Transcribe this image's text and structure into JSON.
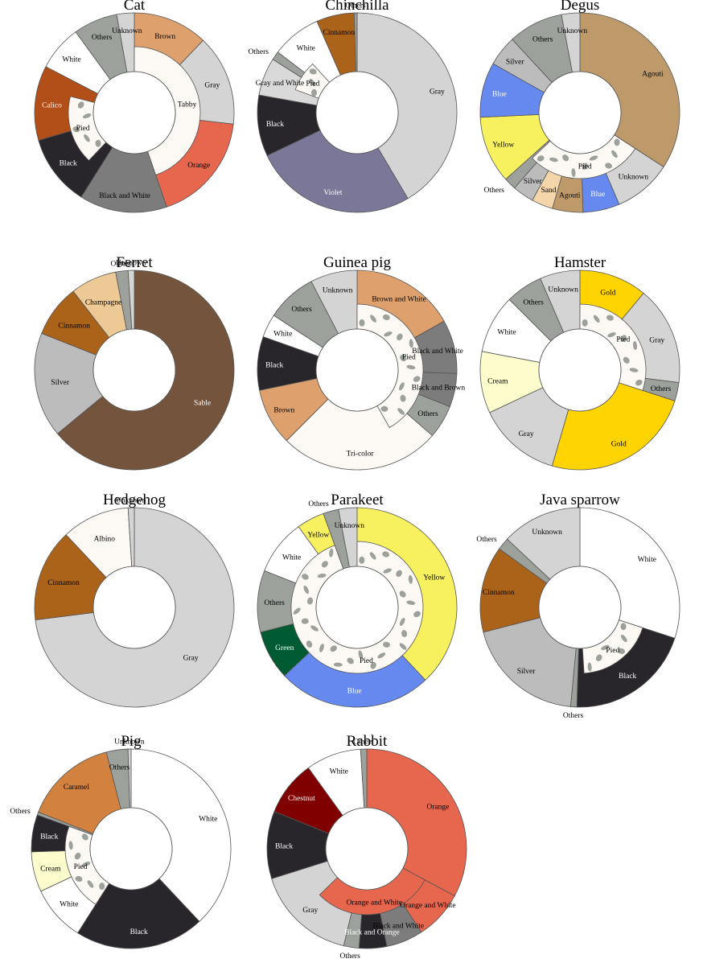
{
  "colors": {
    "Tabby": "#fcf8f4",
    "Brown": "#dea06c",
    "Gray": "#d4d4d4",
    "Orange": "#e6664e",
    "Black and White": "#7c7c7c",
    "Black": "#28262b",
    "Calico": "#b24e18",
    "White": "#ffffff",
    "Others": "#9ca19c",
    "Unknown": "#d4d4d4",
    "Cinnamon": "#ab6319",
    "Violet": "#7a7799",
    "Gray and White": "#d9d9d9",
    "Agouti": "#be9a6a",
    "Blue": "#6589ee",
    "Yellow": "#f8f15f",
    "Silver": "#bcbcbc",
    "Sand": "#f4d6aa",
    "Sable": "#74543d",
    "Champagne": "#ecc995",
    "Brown and White": "#dea06c",
    "Black and Brown": "#7c7c7c",
    "Tri-color": "#fcf8f4",
    "Gold": "#ffd400",
    "Cream": "#fdfccd",
    "Albino": "#fcf8f4",
    "Green": "#005a32",
    "Caramel": "#d2823e",
    "Chestnut": "#800000",
    "Orange and White": "#e6664e",
    "Black and Orange": "#28262b",
    "Pied": "#fcf8f4",
    "Pied spot": "#9ca19c"
  },
  "chart_data": [
    {
      "title": "Cat",
      "type": "pie",
      "outer": [
        {
          "label": "Brown",
          "value": 11.5
        },
        {
          "label": "Gray",
          "value": 14
        },
        {
          "label": "Orange",
          "value": 17
        },
        {
          "label": "Black and White",
          "value": 13.5
        },
        {
          "label": "Black",
          "value": 11
        },
        {
          "label": "Calico",
          "value": 11.5
        },
        {
          "label": "White",
          "value": 7
        },
        {
          "label": "Others",
          "value": 6.8
        },
        {
          "label": "Unknown",
          "value": 2.7
        }
      ],
      "inner": [
        {
          "label": "Tabby",
          "value": 42.5,
          "start": 0
        },
        {
          "label": "Pied",
          "value": 16,
          "start": 59
        }
      ]
    },
    {
      "title": "Chinchilla",
      "type": "pie",
      "outer": [
        {
          "label": "Gray",
          "value": 44
        },
        {
          "label": "Violet",
          "value": 28
        },
        {
          "label": "Black",
          "value": 10.5
        },
        {
          "label": "Gray and White",
          "value": 6.5
        },
        {
          "label": "Others",
          "value": 1.5
        },
        {
          "label": "White",
          "value": 8.5
        },
        {
          "label": "Cinnamon",
          "value": 6.5
        },
        {
          "label": "Others",
          "value": 0.5
        }
      ],
      "inner": [
        {
          "label": "Pied",
          "value": 8,
          "start": 85.5
        }
      ]
    },
    {
      "title": "Degus",
      "type": "pie",
      "outer": [
        {
          "label": "Agouti",
          "value": 34.5
        },
        {
          "label": "Unknown",
          "value": 9.5
        },
        {
          "label": "Blue",
          "value": 6
        },
        {
          "label": "Agouti",
          "value": 5
        },
        {
          "label": "Sand",
          "value": 3.5
        },
        {
          "label": "Silver",
          "value": 3.5
        },
        {
          "label": "Others",
          "value": 2
        },
        {
          "label": "Yellow",
          "value": 11
        },
        {
          "label": "Blue",
          "value": 9
        },
        {
          "label": "Silver",
          "value": 5
        },
        {
          "label": "Others",
          "value": 9
        },
        {
          "label": "Unknown",
          "value": 3
        }
      ],
      "inner": [
        {
          "label": "Pied",
          "value": 29,
          "start": 34.5
        }
      ]
    },
    {
      "title": "Ferret",
      "type": "pie",
      "outer": [
        {
          "label": "Sable",
          "value": 64
        },
        {
          "label": "Silver",
          "value": 17
        },
        {
          "label": "Cinnamon",
          "value": 8.5
        },
        {
          "label": "Champagne",
          "value": 7.5
        },
        {
          "label": "Others",
          "value": 2
        },
        {
          "label": "Unknown",
          "value": 1
        }
      ],
      "inner": []
    },
    {
      "title": "Guinea pig",
      "type": "pie",
      "outer": [
        {
          "label": "Brown and White",
          "value": 15.5
        },
        {
          "label": "Black and White",
          "value": 8
        },
        {
          "label": "Black and Brown",
          "value": 5
        },
        {
          "label": "Others",
          "value": 5
        },
        {
          "label": "Tri-color",
          "value": 24
        },
        {
          "label": "Brown",
          "value": 8.5
        },
        {
          "label": "Black",
          "value": 8
        },
        {
          "label": "White",
          "value": 3.5
        },
        {
          "label": "Others",
          "value": 7.5
        },
        {
          "label": "Unknown",
          "value": 7
        }
      ],
      "inner": [
        {
          "label": "Pied",
          "value": 38.5,
          "start": 0
        }
      ]
    },
    {
      "title": "Hamster",
      "type": "pie",
      "outer": [
        {
          "label": "Gold",
          "value": 11
        },
        {
          "label": "Gray",
          "value": 16
        },
        {
          "label": "Others",
          "value": 3
        },
        {
          "label": "Gold",
          "value": 24.5
        },
        {
          "label": "Gray",
          "value": 13.5
        },
        {
          "label": "Cream",
          "value": 10
        },
        {
          "label": "White",
          "value": 9.5
        },
        {
          "label": "Others",
          "value": 6
        },
        {
          "label": "Unknown",
          "value": 6.5
        }
      ],
      "inner": [
        {
          "label": "Pied",
          "value": 30,
          "start": 0
        }
      ]
    },
    {
      "title": "Hedgehog",
      "type": "pie",
      "outer": [
        {
          "label": "Gray",
          "value": 73
        },
        {
          "label": "Cinnamon",
          "value": 15
        },
        {
          "label": "Albino",
          "value": 11
        },
        {
          "label": "Unknown",
          "value": 1
        }
      ],
      "inner": []
    },
    {
      "title": "Parakeet",
      "type": "pie",
      "outer": [
        {
          "label": "Yellow",
          "value": 38
        },
        {
          "label": "Blue",
          "value": 25
        },
        {
          "label": "Green",
          "value": 8
        },
        {
          "label": "Others",
          "value": 10
        },
        {
          "label": "White",
          "value": 9
        },
        {
          "label": "Yellow",
          "value": 4.5
        },
        {
          "label": "Others",
          "value": 2.5
        },
        {
          "label": "Unknown",
          "value": 3
        }
      ],
      "inner": [
        {
          "label": "Pied",
          "value": 94.5,
          "start": 0
        }
      ]
    },
    {
      "title": "Java sparrow",
      "type": "pie",
      "outer": [
        {
          "label": "White",
          "value": 30
        },
        {
          "label": "Black",
          "value": 20.5
        },
        {
          "label": "Others",
          "value": 1
        },
        {
          "label": "Silver",
          "value": 19.5
        },
        {
          "label": "Cinnamon",
          "value": 14
        },
        {
          "label": "Others",
          "value": 2
        },
        {
          "label": "Unknown",
          "value": 13
        }
      ],
      "inner": [
        {
          "label": "Pied",
          "value": 19,
          "start": 30
        }
      ]
    },
    {
      "title": "Pig",
      "type": "pie",
      "outer": [
        {
          "label": "White",
          "value": 38
        },
        {
          "label": "Black",
          "value": 21
        },
        {
          "label": "White",
          "value": 9
        },
        {
          "label": "Cream",
          "value": 6.5
        },
        {
          "label": "Black",
          "value": 6
        },
        {
          "label": "Others",
          "value": 0.5
        },
        {
          "label": "Caramel",
          "value": 15
        },
        {
          "label": "Others",
          "value": 3.5
        },
        {
          "label": "Unknown",
          "value": 0.5
        }
      ],
      "inner": [
        {
          "label": "Pied",
          "value": 21.5,
          "start": 59
        }
      ]
    },
    {
      "title": "Rabbit",
      "type": "pie",
      "outer": [
        {
          "label": "Orange",
          "value": 33
        },
        {
          "label": "Orange and White",
          "value": 8
        },
        {
          "label": "Black and White",
          "value": 6
        },
        {
          "label": "Black and Orange",
          "value": 4.5
        },
        {
          "label": "Others",
          "value": 2.5
        },
        {
          "label": "Gray",
          "value": 16.5
        },
        {
          "label": "Black",
          "value": 11
        },
        {
          "label": "Chestnut",
          "value": 9
        },
        {
          "label": "White",
          "value": 9
        },
        {
          "label": "Others",
          "value": 1
        }
      ],
      "inner": [
        {
          "label": "Orange and White",
          "value": 30,
          "start": 33
        }
      ]
    }
  ]
}
